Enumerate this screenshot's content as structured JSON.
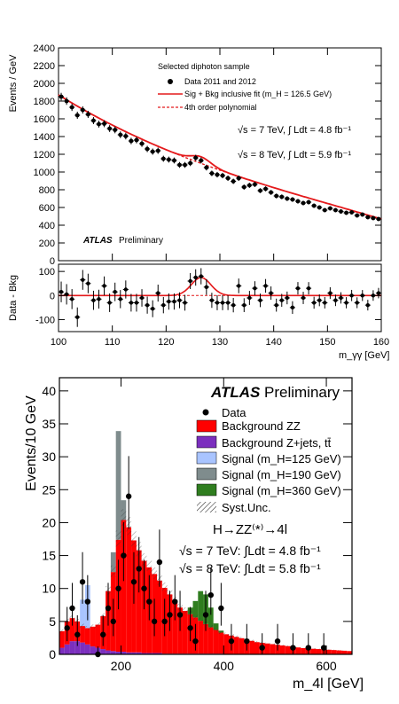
{
  "chart_data": [
    {
      "type": "scatter",
      "panel": "top",
      "xlabel": "m_γγ [GeV]",
      "ylabel": "Events / GeV",
      "xlim": [
        100,
        160
      ],
      "ylim": [
        0,
        2400
      ],
      "xticks": [
        100,
        110,
        120,
        130,
        140,
        150,
        160
      ],
      "yticks": [
        0,
        200,
        400,
        600,
        800,
        1000,
        1200,
        1400,
        1600,
        1800,
        2000,
        2200,
        2400
      ],
      "legend_title": "Selected diphoton sample",
      "legend": {
        "data": "Data 2011 and 2012",
        "fit": "Sig + Bkg inclusive fit (m_H = 126.5 GeV)",
        "bkg": "4th order polynomial"
      },
      "lumi": [
        "√s = 7 TeV, ∫ Ldt = 4.8 fb⁻¹",
        "√s = 8 TeV, ∫ Ldt = 5.9 fb⁻¹"
      ],
      "label_bold": "ATLAS",
      "label_rest": "Preliminary",
      "series": [
        {
          "name": "Data 2011 and 2012",
          "x": [
            100.5,
            101.5,
            102.5,
            103.5,
            104.5,
            105.5,
            106.5,
            107.5,
            108.5,
            109.5,
            110.5,
            111.5,
            112.5,
            113.5,
            114.5,
            115.5,
            116.5,
            117.5,
            118.5,
            119.5,
            120.5,
            121.5,
            122.5,
            123.5,
            124.5,
            125.5,
            126.5,
            127.5,
            128.5,
            129.5,
            130.5,
            131.5,
            132.5,
            133.5,
            134.5,
            135.5,
            136.5,
            137.5,
            138.5,
            139.5,
            140.5,
            141.5,
            142.5,
            143.5,
            144.5,
            145.5,
            146.5,
            147.5,
            148.5,
            149.5,
            150.5,
            151.5,
            152.5,
            153.5,
            154.5,
            155.5,
            156.5,
            157.5,
            158.5,
            159.5
          ],
          "y": [
            1850,
            1800,
            1730,
            1640,
            1700,
            1650,
            1580,
            1540,
            1545,
            1490,
            1475,
            1420,
            1405,
            1350,
            1360,
            1320,
            1260,
            1230,
            1240,
            1150,
            1140,
            1130,
            1080,
            1080,
            1100,
            1160,
            1130,
            1050,
            985,
            970,
            960,
            930,
            895,
            930,
            830,
            850,
            860,
            790,
            810,
            770,
            730,
            720,
            700,
            690,
            670,
            650,
            660,
            620,
            600,
            570,
            590,
            570,
            555,
            540,
            545,
            510,
            520,
            490,
            480,
            470
          ]
        },
        {
          "name": "Sig + Bkg inclusive fit (m_H = 126.5 GeV)",
          "mass": 126.5,
          "peak": 75,
          "width": 1.8
        },
        {
          "name": "4th order polynomial",
          "poly": [
            1865,
            -70.9,
            1.96,
            -0.0485,
            0.00082
          ]
        }
      ]
    },
    {
      "type": "scatter",
      "panel": "residual",
      "xlabel": "m_γγ [GeV]",
      "ylabel": "Data - Bkg",
      "xlim": [
        100,
        160
      ],
      "ylim": [
        -150,
        130
      ],
      "yticks": [
        -100,
        0,
        100
      ],
      "series": [
        {
          "name": "Data - Bkg",
          "x": [
            100.5,
            101.5,
            102.5,
            103.5,
            104.5,
            105.5,
            106.5,
            107.5,
            108.5,
            109.5,
            110.5,
            111.5,
            112.5,
            113.5,
            114.5,
            115.5,
            116.5,
            117.5,
            118.5,
            119.5,
            120.5,
            121.5,
            122.5,
            123.5,
            124.5,
            125.5,
            126.5,
            127.5,
            128.5,
            129.5,
            130.5,
            131.5,
            132.5,
            133.5,
            134.5,
            135.5,
            136.5,
            137.5,
            138.5,
            139.5,
            140.5,
            141.5,
            142.5,
            143.5,
            144.5,
            145.5,
            146.5,
            147.5,
            148.5,
            149.5,
            150.5,
            151.5,
            152.5,
            153.5,
            154.5,
            155.5,
            156.5,
            157.5,
            158.5,
            159.5
          ],
          "y": [
            15,
            5,
            -15,
            -90,
            65,
            50,
            -20,
            -15,
            40,
            -30,
            15,
            -15,
            25,
            -30,
            -30,
            -10,
            -40,
            -55,
            10,
            -40,
            -25,
            -25,
            -20,
            -30,
            60,
            75,
            80,
            35,
            -20,
            -30,
            -30,
            -30,
            -40,
            40,
            -40,
            -10,
            30,
            -20,
            40,
            10,
            -40,
            -20,
            -10,
            -50,
            30,
            -10,
            30,
            -30,
            -20,
            -30,
            10,
            -20,
            -10,
            -30,
            0,
            -30,
            0,
            -40,
            0,
            10
          ]
        }
      ]
    },
    {
      "type": "bar",
      "panel": "bottom",
      "xlabel": "m_4l [GeV]",
      "ylabel": "Events/10 GeV",
      "xlim": [
        80,
        650
      ],
      "ylim": [
        0,
        42
      ],
      "xticks": [
        200,
        400,
        600
      ],
      "yticks": [
        0,
        5,
        10,
        15,
        20,
        25,
        30,
        35,
        40
      ],
      "label_bold": "ATLAS",
      "label_rest": "Preliminary",
      "process": "H→ZZ⁽*⁾→4l",
      "lumi": [
        "√s = 7 TeV: ∫Ldt = 4.8 fb⁻¹",
        "√s = 8 TeV: ∫Ldt = 5.8 fb⁻¹"
      ],
      "legend": {
        "data": "Data",
        "zz": "Background ZZ",
        "zjets": "Background Z+jets, tt̄",
        "s125": "Signal (m_H=125 GeV)",
        "s190": "Signal (m_H=190 GeV)",
        "s360": "Signal (m_H=360 GeV)",
        "syst": "Syst.Unc."
      },
      "colors": {
        "zz": "#ff0000",
        "zjets": "#7b2fbe",
        "s125": "#a9c4ff",
        "s190": "#7f8c8d",
        "s360": "#2f7d1f"
      },
      "bin_edges": [
        80,
        90,
        100,
        110,
        120,
        130,
        140,
        150,
        160,
        170,
        180,
        190,
        200,
        210,
        220,
        230,
        240,
        250,
        260,
        270,
        280,
        290,
        300,
        310,
        320,
        330,
        340,
        350,
        360,
        370,
        380,
        390,
        400,
        410,
        420,
        430,
        440,
        450,
        460,
        470,
        480,
        490,
        500,
        510,
        520,
        530,
        540,
        550,
        560,
        570,
        580,
        590,
        600,
        610,
        620,
        630,
        640,
        650
      ],
      "stacks": {
        "zjets": [
          1.0,
          1.5,
          2.0,
          2.0,
          1.8,
          1.5,
          1.2,
          1.0,
          0.8,
          0.6,
          0.5,
          0.4,
          0.4,
          0.3,
          0.3,
          0.3,
          0.2,
          0.2,
          0.2,
          0.2,
          0.1,
          0.1,
          0.1,
          0.1,
          0.1,
          0.1,
          0.1,
          0.1,
          0.1,
          0.1,
          0.1,
          0.1,
          0.05,
          0.05,
          0.05,
          0.05,
          0.05,
          0.05,
          0.05,
          0.05,
          0.05,
          0.05,
          0.05,
          0.05,
          0.05,
          0.05,
          0.05,
          0.05,
          0.05,
          0.05,
          0.05,
          0.05,
          0.05,
          0.05,
          0.05,
          0.05,
          0.05
        ],
        "zz": [
          2.5,
          3.5,
          3.5,
          3.0,
          2.5,
          2.5,
          3.0,
          3.5,
          5.0,
          9.0,
          12.0,
          17.0,
          20.0,
          19.0,
          17.0,
          15.5,
          14.0,
          13.0,
          12.0,
          11.0,
          10.0,
          9.0,
          8.0,
          7.0,
          6.5,
          6.0,
          5.5,
          5.0,
          4.5,
          4.0,
          3.6,
          3.2,
          3.0,
          2.8,
          2.6,
          2.4,
          2.2,
          2.0,
          1.8,
          1.7,
          1.6,
          1.5,
          1.4,
          1.3,
          1.2,
          1.1,
          1.0,
          0.9,
          0.85,
          0.8,
          0.75,
          0.7,
          0.65,
          0.6,
          0.55,
          0.5,
          0.45
        ],
        "s125": [
          0,
          0,
          0,
          0,
          4.0,
          6.5,
          0,
          0,
          0,
          0,
          0,
          0,
          0,
          0,
          0,
          0,
          0,
          0,
          0,
          0,
          0,
          0,
          0,
          0,
          0,
          0,
          0,
          0,
          0,
          0,
          0,
          0,
          0,
          0,
          0,
          0,
          0,
          0,
          0,
          0,
          0,
          0,
          0,
          0,
          0,
          0,
          0,
          0,
          0,
          0,
          0,
          0,
          0,
          0,
          0,
          0,
          0
        ],
        "s190": [
          0,
          0,
          0,
          0,
          0,
          0,
          0,
          0,
          0,
          0,
          3.0,
          16.5,
          3.0,
          0,
          0,
          0,
          0,
          0,
          0,
          0,
          0,
          0,
          0,
          0,
          0,
          0,
          0,
          0,
          0,
          0,
          0,
          0,
          0,
          0,
          0,
          0,
          0,
          0,
          0,
          0,
          0,
          0,
          0,
          0,
          0,
          0,
          0,
          0,
          0,
          0,
          0,
          0,
          0,
          0,
          0,
          0,
          0,
          0
        ],
        "s360": [
          0,
          0,
          0,
          0,
          0,
          0,
          0,
          0,
          0,
          0,
          0,
          0,
          0,
          0,
          0,
          0,
          0,
          0,
          0,
          0,
          0,
          0,
          0,
          0,
          0,
          1.0,
          2.5,
          4.5,
          4.5,
          3.0,
          1.0,
          0.3,
          0,
          0,
          0,
          0,
          0,
          0,
          0,
          0,
          0,
          0,
          0,
          0,
          0,
          0,
          0,
          0,
          0,
          0,
          0,
          0,
          0,
          0,
          0,
          0,
          0
        ]
      },
      "data_points": {
        "x": [
          95,
          105,
          115,
          125,
          135,
          155,
          165,
          175,
          185,
          195,
          205,
          215,
          225,
          235,
          245,
          255,
          265,
          275,
          285,
          295,
          305,
          315,
          335,
          345,
          365,
          375,
          395,
          415,
          445,
          475,
          505,
          535,
          565,
          595
        ],
        "y": [
          4,
          7,
          3,
          11,
          8,
          0,
          3,
          7,
          5,
          10,
          15,
          24,
          11,
          13,
          10,
          8,
          5,
          14,
          5,
          6,
          8,
          6,
          4,
          2,
          6,
          9,
          7,
          2,
          2,
          1,
          2,
          1,
          1,
          1
        ]
      }
    }
  ]
}
